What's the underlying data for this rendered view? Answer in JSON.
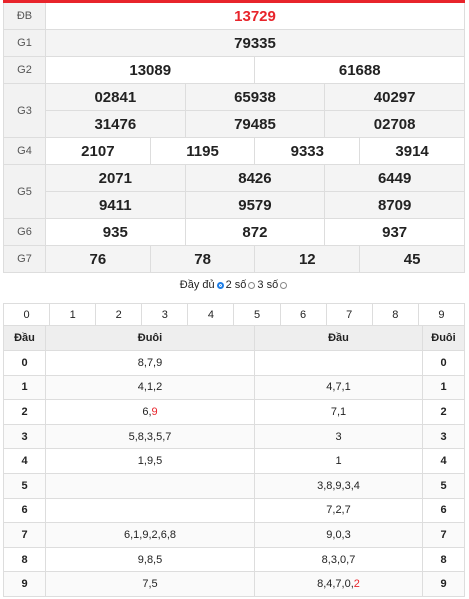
{
  "results": {
    "rows": [
      {
        "label": "ĐB",
        "lines": [
          [
            "13729"
          ]
        ]
      },
      {
        "label": "G1",
        "lines": [
          [
            "79335"
          ]
        ]
      },
      {
        "label": "G2",
        "lines": [
          [
            "13089",
            "61688"
          ]
        ]
      },
      {
        "label": "G3",
        "lines": [
          [
            "02841",
            "65938",
            "40297"
          ],
          [
            "31476",
            "79485",
            "02708"
          ]
        ]
      },
      {
        "label": "G4",
        "lines": [
          [
            "2107",
            "1195",
            "9333",
            "3914"
          ]
        ]
      },
      {
        "label": "G5",
        "lines": [
          [
            "2071",
            "8426",
            "6449"
          ],
          [
            "9411",
            "9579",
            "8709"
          ]
        ]
      },
      {
        "label": "G6",
        "lines": [
          [
            "935",
            "872",
            "937"
          ]
        ]
      },
      {
        "label": "G7",
        "lines": [
          [
            "76",
            "78",
            "12",
            "45"
          ]
        ]
      }
    ],
    "special_color": "#e8242b"
  },
  "filter": {
    "options": [
      "Đầy đủ",
      "2 số",
      "3 số"
    ],
    "selected": 0
  },
  "loto": {
    "digits": [
      "0",
      "1",
      "2",
      "3",
      "4",
      "5",
      "6",
      "7",
      "8",
      "9"
    ],
    "headers": [
      "Đầu",
      "Đuôi",
      "Đầu",
      "Đuôi"
    ],
    "rows": [
      {
        "head": "0",
        "tails": [
          {
            "text": "8,7,9"
          }
        ],
        "heads": null,
        "tail": "0"
      },
      {
        "head": "1",
        "tails": [
          {
            "text": "4,1,2"
          }
        ],
        "heads": [
          {
            "text": "4,7,1"
          }
        ],
        "tail": "1"
      },
      {
        "head": "2",
        "tails": [
          {
            "text": "6,"
          },
          {
            "text": "9",
            "color": "#e8242b"
          }
        ],
        "heads": [
          {
            "text": "7,1"
          }
        ],
        "tail": "2"
      },
      {
        "head": "3",
        "tails": [
          {
            "text": "5,8,3,5,7"
          }
        ],
        "heads": [
          {
            "text": "3"
          }
        ],
        "tail": "3"
      },
      {
        "head": "4",
        "tails": [
          {
            "text": "1,9,5"
          }
        ],
        "heads": [
          {
            "text": "1"
          }
        ],
        "tail": "4"
      },
      {
        "head": "5",
        "tails": null,
        "heads": [
          {
            "text": "3,8,9,3,4"
          }
        ],
        "tail": "5"
      },
      {
        "head": "6",
        "tails": null,
        "heads": [
          {
            "text": "7,2,7"
          }
        ],
        "tail": "6"
      },
      {
        "head": "7",
        "tails": [
          {
            "text": "6,1,9,2,6,8"
          }
        ],
        "heads": [
          {
            "text": "9,0,3"
          }
        ],
        "tail": "7"
      },
      {
        "head": "8",
        "tails": [
          {
            "text": "9,8,5"
          }
        ],
        "heads": [
          {
            "text": "8,3,0,7"
          }
        ],
        "tail": "8"
      },
      {
        "head": "9",
        "tails": [
          {
            "text": "7,5"
          }
        ],
        "heads": [
          {
            "text": "8,4,7,0,"
          },
          {
            "text": "2",
            "color": "#e8242b"
          }
        ],
        "tail": "9"
      }
    ]
  }
}
